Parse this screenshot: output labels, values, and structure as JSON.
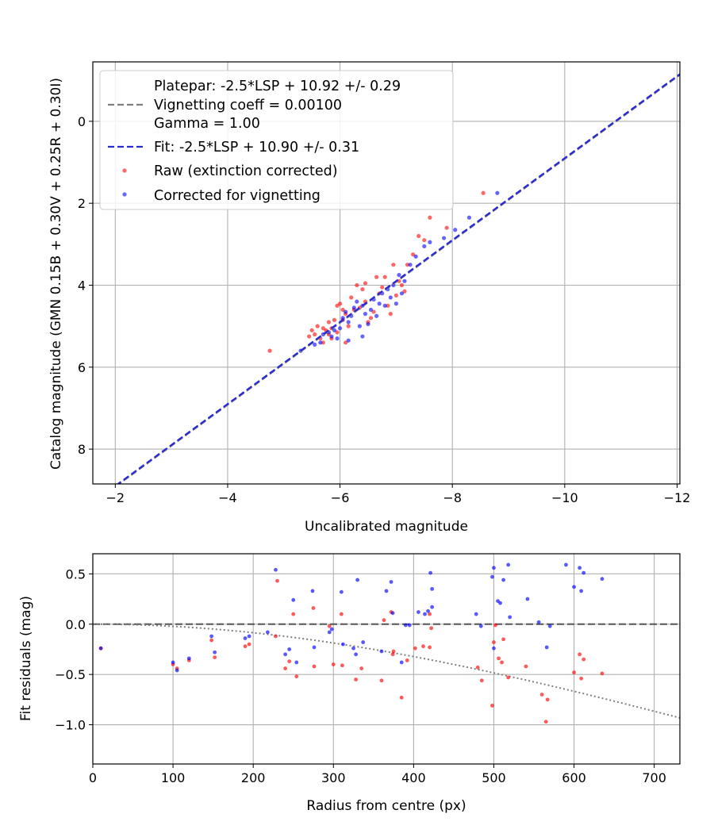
{
  "chart_data": [
    {
      "type": "scatter",
      "title": "",
      "xlabel": "Uncalibrated magnitude",
      "ylabel": "Catalog magnitude (GMN 0.15B + 0.30V + 0.25R + 0.30I)",
      "xlim": [
        -1.6,
        -12.05
      ],
      "ylim": [
        8.85,
        -1.45
      ],
      "x_ticks": [
        -2,
        -4,
        -6,
        -8,
        -10,
        -12
      ],
      "x_tick_labels": [
        "−2",
        "−4",
        "−6",
        "−8",
        "−10",
        "−12"
      ],
      "y_ticks": [
        0,
        2,
        4,
        6,
        8
      ],
      "y_tick_labels": [
        "0",
        "2",
        "4",
        "6",
        "8"
      ],
      "grid": true,
      "legend_position": "top-left",
      "legend": [
        {
          "text": "Platepar: -2.5*LSP + 10.92 +/- 0.29\nVignetting coeff = 0.00100\nGamma = 1.00",
          "style": "dashed",
          "color": "#808080"
        },
        {
          "text": "Fit: -2.5*LSP + 10.90 +/- 0.31",
          "style": "dashed",
          "color": "#2a2ad4"
        },
        {
          "text": "Raw (extinction corrected)",
          "style": "marker",
          "color": "#ff0000"
        },
        {
          "text": "Corrected for vignetting",
          "style": "marker",
          "color": "#0000ff"
        }
      ],
      "fit_line": {
        "slope": 1,
        "intercept": 10.9,
        "color": "#2a2ad4",
        "style": "dashed"
      },
      "series": [
        {
          "name": "Raw (extinction corrected)",
          "color": "#ff0000",
          "points": [
            [
              -4.75,
              5.6
            ],
            [
              -5.45,
              5.25
            ],
            [
              -5.5,
              5.1
            ],
            [
              -5.55,
              5.2
            ],
            [
              -5.6,
              5.0
            ],
            [
              -5.65,
              5.3
            ],
            [
              -5.7,
              5.05
            ],
            [
              -5.75,
              5.1
            ],
            [
              -5.8,
              4.9
            ],
            [
              -5.8,
              5.2
            ],
            [
              -5.85,
              5.3
            ],
            [
              -5.85,
              5.05
            ],
            [
              -5.9,
              4.85
            ],
            [
              -5.95,
              4.5
            ],
            [
              -5.95,
              5.15
            ],
            [
              -6.0,
              4.45
            ],
            [
              -6.05,
              4.6
            ],
            [
              -6.1,
              4.7
            ],
            [
              -6.1,
              5.4
            ],
            [
              -6.15,
              5.0
            ],
            [
              -6.2,
              4.3
            ],
            [
              -6.25,
              4.6
            ],
            [
              -6.3,
              4.0
            ],
            [
              -6.35,
              4.55
            ],
            [
              -6.4,
              4.1
            ],
            [
              -6.45,
              4.4
            ],
            [
              -6.5,
              4.9
            ],
            [
              -6.55,
              4.8
            ],
            [
              -6.6,
              4.65
            ],
            [
              -6.65,
              3.8
            ],
            [
              -6.7,
              4.2
            ],
            [
              -6.75,
              4.05
            ],
            [
              -6.8,
              3.8
            ],
            [
              -6.85,
              4.5
            ],
            [
              -6.9,
              4.7
            ],
            [
              -6.95,
              3.5
            ],
            [
              -7.0,
              4.25
            ],
            [
              -7.05,
              3.9
            ],
            [
              -7.1,
              4.0
            ],
            [
              -7.15,
              4.15
            ],
            [
              -7.2,
              3.5
            ],
            [
              -7.3,
              3.25
            ],
            [
              -7.4,
              2.8
            ],
            [
              -7.5,
              2.9
            ],
            [
              -7.6,
              2.35
            ],
            [
              -7.9,
              2.6
            ],
            [
              -8.55,
              1.75
            ],
            [
              -6.05,
              4.85
            ],
            [
              -5.7,
              5.4
            ],
            [
              -6.45,
              3.95
            ]
          ]
        },
        {
          "name": "Corrected for vignetting",
          "color": "#0000ff",
          "points": [
            [
              -5.3,
              5.6
            ],
            [
              -5.55,
              5.45
            ],
            [
              -5.65,
              5.4
            ],
            [
              -5.7,
              5.2
            ],
            [
              -5.8,
              5.15
            ],
            [
              -5.85,
              5.25
            ],
            [
              -5.9,
              5.1
            ],
            [
              -5.95,
              5.3
            ],
            [
              -6.0,
              5.05
            ],
            [
              -6.05,
              4.8
            ],
            [
              -6.1,
              4.65
            ],
            [
              -6.15,
              4.9
            ],
            [
              -6.2,
              4.75
            ],
            [
              -6.25,
              4.55
            ],
            [
              -6.3,
              4.4
            ],
            [
              -6.35,
              5.0
            ],
            [
              -6.4,
              4.5
            ],
            [
              -6.45,
              4.7
            ],
            [
              -6.5,
              4.95
            ],
            [
              -6.55,
              4.6
            ],
            [
              -6.6,
              4.35
            ],
            [
              -6.65,
              4.75
            ],
            [
              -6.7,
              4.45
            ],
            [
              -6.75,
              4.2
            ],
            [
              -6.8,
              4.5
            ],
            [
              -6.85,
              4.1
            ],
            [
              -6.9,
              4.3
            ],
            [
              -6.95,
              4.0
            ],
            [
              -7.0,
              4.45
            ],
            [
              -7.05,
              3.75
            ],
            [
              -7.1,
              4.2
            ],
            [
              -7.15,
              3.9
            ],
            [
              -7.25,
              3.5
            ],
            [
              -7.35,
              3.3
            ],
            [
              -7.5,
              3.05
            ],
            [
              -7.6,
              2.95
            ],
            [
              -7.85,
              2.85
            ],
            [
              -8.05,
              2.65
            ],
            [
              -8.3,
              2.35
            ],
            [
              -8.8,
              1.75
            ],
            [
              -6.4,
              5.25
            ],
            [
              -6.15,
              5.35
            ]
          ]
        }
      ]
    },
    {
      "type": "scatter",
      "title": "",
      "xlabel": "Radius from centre (px)",
      "ylabel": "Fit residuals (mag)",
      "xlim": [
        0,
        732
      ],
      "ylim": [
        -1.39,
        0.7
      ],
      "x_ticks": [
        0,
        100,
        200,
        300,
        400,
        500,
        600,
        700
      ],
      "x_tick_labels": [
        "0",
        "100",
        "200",
        "300",
        "400",
        "500",
        "600",
        "700"
      ],
      "y_ticks": [
        0.5,
        0.0,
        -0.5,
        -1.0
      ],
      "y_tick_labels": [
        "0.5",
        "0.0",
        "−0.5",
        "−1.0"
      ],
      "grid": true,
      "zero_line": {
        "y": 0,
        "color": "#555555",
        "style": "dashed"
      },
      "model_curve": {
        "coeff": 0.001,
        "color": "#808080",
        "style": "dotted"
      },
      "series": [
        {
          "name": "",
          "color": "#ff0000",
          "points": [
            [
              10,
              -0.24
            ],
            [
              100,
              -0.4
            ],
            [
              105,
              -0.44
            ],
            [
              120,
              -0.36
            ],
            [
              148,
              -0.16
            ],
            [
              152,
              -0.33
            ],
            [
              190,
              -0.22
            ],
            [
              195,
              -0.2
            ],
            [
              228,
              -0.12
            ],
            [
              230,
              0.43
            ],
            [
              240,
              -0.44
            ],
            [
              245,
              -0.37
            ],
            [
              250,
              0.1
            ],
            [
              254,
              -0.52
            ],
            [
              275,
              0.16
            ],
            [
              276,
              -0.42
            ],
            [
              295,
              -0.02
            ],
            [
              300,
              -0.4
            ],
            [
              310,
              0.1
            ],
            [
              311,
              -0.41
            ],
            [
              328,
              -0.55
            ],
            [
              335,
              -0.44
            ],
            [
              360,
              -0.56
            ],
            [
              363,
              0.04
            ],
            [
              372,
              0.12
            ],
            [
              374,
              -0.3
            ],
            [
              385,
              -0.73
            ],
            [
              392,
              -0.36
            ],
            [
              402,
              -0.24
            ],
            [
              412,
              -0.22
            ],
            [
              420,
              0.1
            ],
            [
              422,
              -0.04
            ],
            [
              480,
              -0.43
            ],
            [
              485,
              -0.56
            ],
            [
              498,
              -0.81
            ],
            [
              500,
              -0.18
            ],
            [
              502,
              -0.01
            ],
            [
              506,
              -0.34
            ],
            [
              510,
              -0.38
            ],
            [
              512,
              -0.15
            ],
            [
              518,
              -0.53
            ],
            [
              540,
              -0.42
            ],
            [
              560,
              -0.7
            ],
            [
              565,
              -0.97
            ],
            [
              567,
              -0.75
            ],
            [
              600,
              -0.48
            ],
            [
              607,
              -0.3
            ],
            [
              609,
              -0.54
            ],
            [
              612,
              -0.35
            ],
            [
              635,
              -0.49
            ],
            [
              375,
              -0.27
            ],
            [
              420,
              -0.23
            ]
          ]
        },
        {
          "name": "",
          "color": "#0000ff",
          "points": [
            [
              10,
              -0.24
            ],
            [
              100,
              -0.38
            ],
            [
              105,
              -0.46
            ],
            [
              120,
              -0.34
            ],
            [
              148,
              -0.12
            ],
            [
              152,
              -0.28
            ],
            [
              190,
              -0.14
            ],
            [
              195,
              -0.12
            ],
            [
              218,
              -0.08
            ],
            [
              228,
              0.54
            ],
            [
              240,
              -0.3
            ],
            [
              245,
              -0.25
            ],
            [
              250,
              0.24
            ],
            [
              254,
              -0.38
            ],
            [
              274,
              0.33
            ],
            [
              276,
              -0.23
            ],
            [
              295,
              -0.08
            ],
            [
              298,
              -0.05
            ],
            [
              310,
              0.32
            ],
            [
              312,
              -0.2
            ],
            [
              325,
              -0.24
            ],
            [
              328,
              -0.3
            ],
            [
              330,
              0.44
            ],
            [
              337,
              -0.18
            ],
            [
              360,
              -0.27
            ],
            [
              366,
              0.33
            ],
            [
              372,
              0.42
            ],
            [
              374,
              0.11
            ],
            [
              385,
              -0.38
            ],
            [
              390,
              -0.01
            ],
            [
              395,
              -0.01
            ],
            [
              406,
              0.12
            ],
            [
              414,
              0.1
            ],
            [
              418,
              0.13
            ],
            [
              421,
              0.51
            ],
            [
              423,
              0.35
            ],
            [
              423,
              0.17
            ],
            [
              478,
              0.1
            ],
            [
              484,
              -0.02
            ],
            [
              498,
              0.47
            ],
            [
              500,
              0.56
            ],
            [
              500,
              -0.24
            ],
            [
              505,
              0.23
            ],
            [
              508,
              0.21
            ],
            [
              512,
              0.44
            ],
            [
              518,
              0.59
            ],
            [
              520,
              0.07
            ],
            [
              542,
              0.25
            ],
            [
              556,
              0.02
            ],
            [
              566,
              -0.23
            ],
            [
              570,
              -0.02
            ],
            [
              590,
              0.59
            ],
            [
              600,
              0.37
            ],
            [
              607,
              0.56
            ],
            [
              609,
              0.33
            ],
            [
              612,
              0.51
            ],
            [
              635,
              0.45
            ]
          ]
        }
      ]
    }
  ]
}
